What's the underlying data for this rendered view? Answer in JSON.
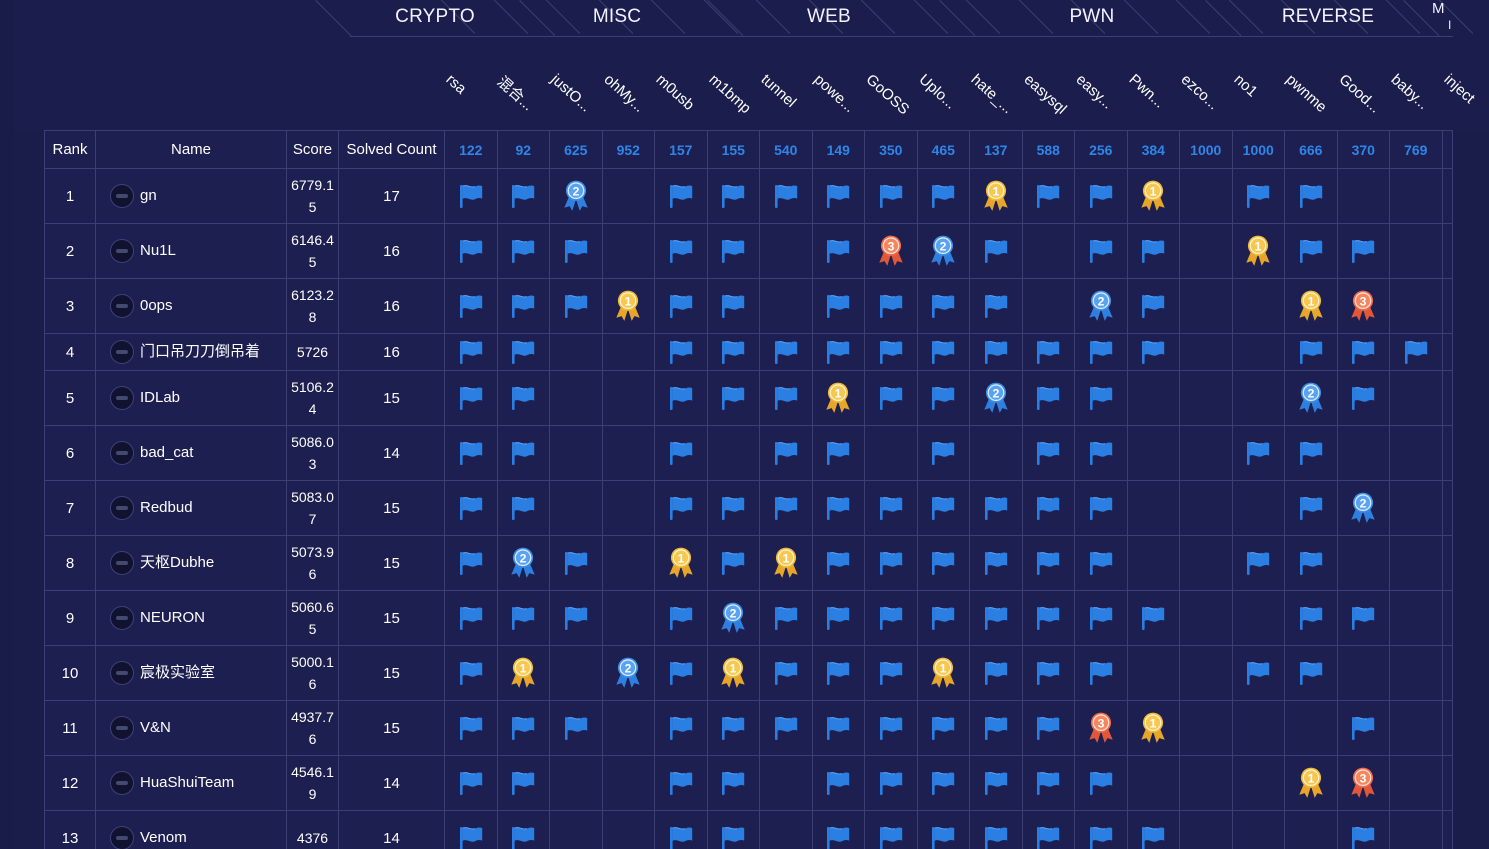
{
  "categories": [
    {
      "label": "CRYPTO"
    },
    {
      "label": "MISC"
    },
    {
      "label": "WEB"
    },
    {
      "label": "PWN"
    },
    {
      "label": "REVERSE"
    },
    {
      "label": "M"
    }
  ],
  "categories_extra": "I",
  "challenges": [
    {
      "name": "rsa",
      "points": "122"
    },
    {
      "name": "混合...",
      "points": "92"
    },
    {
      "name": "justO...",
      "points": "625"
    },
    {
      "name": "ohMy...",
      "points": "952"
    },
    {
      "name": "m0usb",
      "points": "157"
    },
    {
      "name": "m1bmp",
      "points": "155"
    },
    {
      "name": "tunnel",
      "points": "540"
    },
    {
      "name": "powe...",
      "points": "149"
    },
    {
      "name": "GoOSS",
      "points": "350"
    },
    {
      "name": "Uplo...",
      "points": "465"
    },
    {
      "name": "hate_...",
      "points": "137"
    },
    {
      "name": "easysql",
      "points": "588"
    },
    {
      "name": "easy...",
      "points": "256"
    },
    {
      "name": "Pwn...",
      "points": "384"
    },
    {
      "name": "ezco...",
      "points": "1000"
    },
    {
      "name": "no1",
      "points": "1000"
    },
    {
      "name": "pwnme",
      "points": "666"
    },
    {
      "name": "Good...",
      "points": "370"
    },
    {
      "name": "baby...",
      "points": "769"
    },
    {
      "name": "inject",
      "points": ""
    }
  ],
  "headers": {
    "rank": "Rank",
    "name": "Name",
    "score": "Score",
    "solved": "Solved Count"
  },
  "rows": [
    {
      "rank": "1",
      "name": "gn",
      "score": [
        "6779.1",
        "5"
      ],
      "solved": "17",
      "cells": "FF2.FFFFFF1FF1.FF."
    },
    {
      "rank": "2",
      "name": "Nu1L",
      "score": [
        "6146.4",
        "5"
      ],
      "solved": "16",
      "cells": "FFF.FF.F32F.FF.1FF."
    },
    {
      "rank": "3",
      "name": "0ops",
      "score": [
        "6123.2",
        "8"
      ],
      "solved": "16",
      "cells": "FFF1FF.FFFF.2F..13."
    },
    {
      "rank": "4",
      "name": "门口吊刀刀倒吊着",
      "score": [
        "5726"
      ],
      "solved": "16",
      "cells": "FF..FFFFFFFFFF..FFF"
    },
    {
      "rank": "5",
      "name": "IDLab",
      "score": [
        "5106.2",
        "4"
      ],
      "solved": "15",
      "cells": "FF..FFF1FF2FF...2F"
    },
    {
      "rank": "6",
      "name": "bad_cat",
      "score": [
        "5086.0",
        "3"
      ],
      "solved": "14",
      "cells": "FF..F.FF.F.FF..FF."
    },
    {
      "rank": "7",
      "name": "Redbud",
      "score": [
        "5083.0",
        "7"
      ],
      "solved": "15",
      "cells": "FF..FFFFFFFFF...F2"
    },
    {
      "rank": "8",
      "name": "天枢Dubhe",
      "score": [
        "5073.9",
        "6"
      ],
      "solved": "15",
      "cells": "F2F.1F1FFFFFF..FF."
    },
    {
      "rank": "9",
      "name": "NEURON",
      "score": [
        "5060.6",
        "5"
      ],
      "solved": "15",
      "cells": "FFF.F2FFFFFFFF..FF."
    },
    {
      "rank": "10",
      "name": "宸极实验室",
      "score": [
        "5000.1",
        "6"
      ],
      "solved": "15",
      "cells": "F1.2F1FFF1FFF..FF."
    },
    {
      "rank": "11",
      "name": "V&N",
      "score": [
        "4937.7",
        "6"
      ],
      "solved": "15",
      "cells": "FFF.FFFFFFFF31...F."
    },
    {
      "rank": "12",
      "name": "HuaShuiTeam",
      "score": [
        "4546.1",
        "9"
      ],
      "solved": "14",
      "cells": "FF..FF.FFFFFF...13"
    },
    {
      "rank": "13",
      "name": "Venom",
      "score": [
        "4376"
      ],
      "solved": "14",
      "cells": "FF..FF.FFFFFFF...F."
    }
  ],
  "colors": {
    "flag": "#2b7fe3",
    "gold": "#f2b93a",
    "silver": "#3f8ee6",
    "bronze": "#ee6a4a",
    "points": "#2f86e8"
  }
}
